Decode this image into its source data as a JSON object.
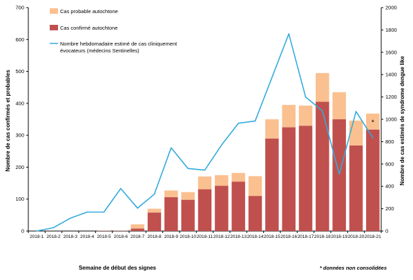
{
  "chart_data": {
    "type": "bar",
    "categories": [
      "2018-1",
      "2018-2",
      "2018-3",
      "2018-4",
      "2018-5",
      "2018-6",
      "2018-7",
      "2018-8",
      "2018-9",
      "2018-10",
      "2018-11",
      "2018-12",
      "2018-13",
      "2018-14",
      "2018-15",
      "2018-16",
      "2018-17",
      "2018-18",
      "2018-19",
      "2018-20",
      "2018-21"
    ],
    "series": [
      {
        "name": "Cas confirmé autochtone",
        "kind": "bar",
        "axis": "left",
        "color": "#c0504d",
        "values": [
          0,
          0,
          0,
          0,
          1,
          1,
          8,
          58,
          106,
          98,
          131,
          142,
          155,
          110,
          290,
          325,
          330,
          405,
          350,
          268,
          318
        ]
      },
      {
        "name": "Cas probable autochtone",
        "kind": "bar-stacked",
        "axis": "left",
        "color": "#fac090",
        "values": [
          0,
          0,
          0,
          0,
          0,
          0,
          13,
          12,
          21,
          24,
          40,
          33,
          27,
          62,
          60,
          70,
          63,
          90,
          85,
          78,
          50
        ]
      },
      {
        "name": "Nombre hebdomadaire estimé de cas cliniquement évocateurs (médecins Sentinelles)",
        "kind": "line",
        "axis": "right",
        "color": "#34aadc",
        "values": [
          0,
          30,
          115,
          170,
          170,
          380,
          205,
          330,
          745,
          560,
          545,
          770,
          965,
          985,
          1375,
          1765,
          1200,
          1075,
          510,
          1070,
          835
        ]
      }
    ],
    "ylim_left": [
      0,
      700
    ],
    "yticks_left": [
      0,
      100,
      200,
      300,
      400,
      500,
      600,
      700
    ],
    "ylim_right": [
      0,
      2000
    ],
    "yticks_right": [
      0,
      200,
      400,
      600,
      800,
      1000,
      1200,
      1400,
      1600,
      1800,
      2000
    ],
    "ylabel_left": "Nombre de cas confirmés et probables",
    "ylabel_right": "Nombre de cas estimés de syndrome dengue like",
    "xlabel": "Semaine de début des signes",
    "legend_position": "top-left",
    "legend": {
      "probable": "Cas probable autochtone",
      "confirme": "Cas confirmé autochtone",
      "line_line1": "Nombre hebdomadaire estimé de cas cliniquement",
      "line_line2": "évocateurs (médecins Sentinelles)"
    },
    "annotation": {
      "text": "*",
      "category": "2018-21"
    },
    "footnote": "* données non consolidées",
    "grid": false
  }
}
